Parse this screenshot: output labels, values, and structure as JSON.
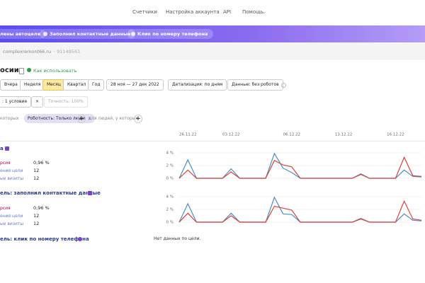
{
  "nav": [
    "Счетчики",
    "Настройка аккаунта",
    "API",
    "Помощь"
  ],
  "banner": [
    "лены автоцели",
    "Заполнил контактные данные",
    "Клик по номеру телефона"
  ],
  "counter": {
    "site": "complexremont66.ru",
    "id": "· 91149561"
  },
  "page_title": "осии",
  "help_link": "Как использовать",
  "periods": [
    "Вчера",
    "Неделя",
    "Месяц",
    "Квартал",
    "Год"
  ],
  "date_range": "28 ноя — 27 дек 2022",
  "detail": "Детализация: по дням",
  "data_filter": "Данные: без роботов",
  "filter": ": 1 условие",
  "accuracy": "Точность: 100%",
  "segment": {
    "prefix": "которых",
    "tag": "Роботность: Только люди",
    "suffix": "для людей, у которых"
  },
  "goals": [
    {
      "name": "а",
      "metrics": [
        {
          "label": "рсия",
          "value": "0,96 %"
        },
        {
          "label": "ения цели",
          "value": 12
        },
        {
          "label": "ые визиты",
          "value": 12
        }
      ]
    },
    {
      "name": "ель: заполнил контактные данные",
      "metrics": [
        {
          "label": "рсия",
          "value": "0,96 %"
        },
        {
          "label": "ения цели",
          "value": 12
        },
        {
          "label": "ые визиты",
          "value": 12
        }
      ]
    },
    {
      "name": "ель: клик по номеру телефона",
      "no_data": "Нет данных по цели."
    }
  ],
  "chart_data": [
    {
      "type": "line",
      "categories": [
        null,
        "26.11.22",
        null,
        null,
        null,
        null,
        "03.12.22",
        null,
        null,
        null,
        null,
        null,
        null,
        "06.12.22",
        null,
        null,
        null,
        null,
        null,
        "13.12.22",
        null,
        null,
        null,
        null,
        null,
        "16.12.22",
        null,
        null,
        null
      ],
      "ylim": [
        0,
        4
      ],
      "yticks": [
        {
          "value": 4,
          "label": "4 %"
        },
        {
          "value": 2,
          "label": "2 %"
        },
        {
          "value": 0,
          "label": "0 %"
        }
      ],
      "grid": true,
      "series": [
        {
          "color": "#4a8fc4",
          "values": [
            0,
            2.9,
            0,
            0,
            0,
            0,
            1.5,
            0,
            0,
            0,
            0,
            3.9,
            1.6,
            0.9,
            0,
            0,
            0,
            0,
            0,
            0,
            0,
            0.7,
            0,
            0,
            0,
            0,
            1.3,
            0.3,
            0.2
          ]
        },
        {
          "color": "#e0403a",
          "values": [
            0,
            1.3,
            0,
            0,
            0,
            0,
            1.0,
            0,
            0,
            0,
            0,
            2.8,
            2.1,
            1.8,
            0,
            0,
            0,
            0,
            0,
            0,
            0,
            0.6,
            0,
            0,
            0,
            0,
            3.3,
            0.4,
            0.3
          ]
        }
      ]
    },
    {
      "type": "line",
      "ylim": [
        0,
        4
      ],
      "yticks": [
        {
          "value": 4,
          "label": "4 %"
        },
        {
          "value": 2,
          "label": "2 %"
        },
        {
          "value": 0,
          "label": "0 %"
        }
      ],
      "grid": true,
      "series": [
        {
          "color": "#4a8fc4",
          "values": [
            0,
            2.9,
            0,
            0,
            0,
            0,
            1.4,
            0,
            0,
            0,
            0,
            3.9,
            1.3,
            1.2,
            0,
            0,
            0,
            0,
            0,
            0,
            0,
            0.6,
            0,
            0,
            0,
            0,
            1.3,
            0.3,
            0.2
          ]
        },
        {
          "color": "#e0403a",
          "values": [
            0,
            1.4,
            0,
            0,
            0,
            0,
            1.0,
            0,
            0,
            0,
            0,
            2.5,
            2.2,
            1.9,
            0,
            0,
            0,
            0,
            0,
            0,
            0,
            0.5,
            0,
            0,
            0,
            0,
            3.3,
            0.5,
            0.3
          ]
        }
      ]
    }
  ]
}
